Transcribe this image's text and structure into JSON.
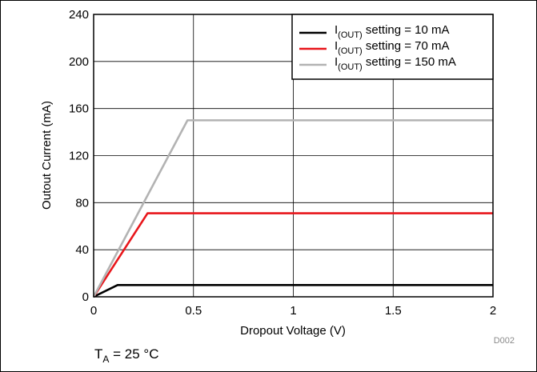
{
  "chart_data": {
    "type": "line",
    "xlabel": "Dropout Voltage (V)",
    "ylabel": "Outout Current (mA)",
    "xlim": [
      0,
      2
    ],
    "ylim": [
      0,
      240
    ],
    "x_ticks": [
      "0",
      "0.5",
      "1",
      "1.5",
      "2"
    ],
    "y_ticks": [
      "0",
      "40",
      "80",
      "120",
      "160",
      "200",
      "240"
    ],
    "grid": true,
    "legend_position": "top-right",
    "series": [
      {
        "legend_main": "I",
        "legend_sub": "(OUT)",
        "legend_rest": " setting = 10 mA",
        "color": "#000000",
        "x": [
          0,
          0.12,
          2
        ],
        "y": [
          0,
          10,
          10
        ]
      },
      {
        "legend_main": "I",
        "legend_sub": "(OUT)",
        "legend_rest": " setting = 70 mA",
        "color": "#e8161b",
        "x": [
          0,
          0.27,
          2
        ],
        "y": [
          0,
          71,
          71
        ]
      },
      {
        "legend_main": "I",
        "legend_sub": "(OUT)",
        "legend_rest": " setting = 150 mA",
        "color": "#b3b3b3",
        "x": [
          0,
          0.47,
          2
        ],
        "y": [
          0,
          150,
          150
        ]
      }
    ]
  },
  "figure_code": "D002",
  "condition": {
    "main": "T",
    "sub": "A",
    "rest": " = 25 °C"
  }
}
